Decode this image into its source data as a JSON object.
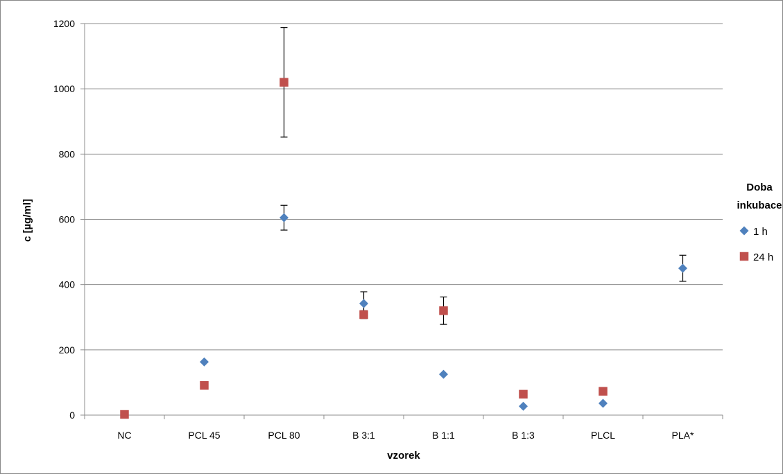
{
  "chart_data": {
    "type": "scatter",
    "xlabel": "vzorek",
    "ylabel": "c [µg/ml]",
    "ylim": [
      0,
      1200
    ],
    "yticks": [
      0,
      200,
      400,
      600,
      800,
      1000,
      1200
    ],
    "grid": true,
    "legend": {
      "title_line1": "Doba",
      "title_line2": "inkubace",
      "placement": "right"
    },
    "categories": [
      "NC",
      "PCL 45",
      "PCL 80",
      "B 3:1",
      "B 1:1",
      "B 1:3",
      "PLCL",
      "PLA*"
    ],
    "series": [
      {
        "name": "1 h",
        "marker": "diamond",
        "color": "#4F81BD",
        "values": [
          null,
          163,
          605,
          342,
          125,
          27,
          36,
          450
        ],
        "errors": [
          null,
          null,
          38,
          36,
          null,
          null,
          null,
          40
        ]
      },
      {
        "name": "24 h",
        "marker": "square",
        "color": "#C0504D",
        "values": [
          2,
          91,
          1020,
          308,
          320,
          64,
          73,
          null
        ],
        "errors": [
          null,
          null,
          168,
          12,
          42,
          null,
          null,
          null
        ]
      }
    ]
  }
}
